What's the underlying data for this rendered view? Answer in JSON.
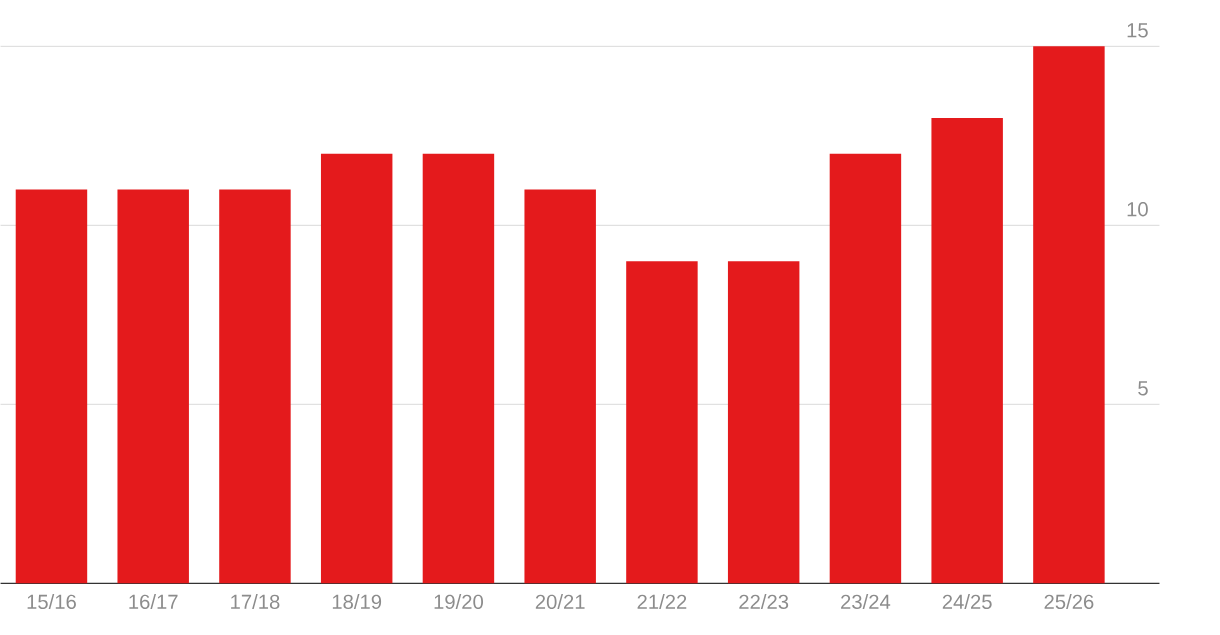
{
  "chart_data": {
    "type": "bar",
    "categories": [
      "15/16",
      "16/17",
      "17/18",
      "18/19",
      "19/20",
      "20/21",
      "21/22",
      "22/23",
      "23/24",
      "24/25",
      "25/26"
    ],
    "values": [
      11,
      11,
      11,
      12,
      12,
      11,
      9,
      9,
      12,
      13,
      15
    ],
    "color": "#e41a1c",
    "ylim": [
      0,
      15
    ],
    "yticks": [
      5,
      10,
      15
    ],
    "grid": "y"
  }
}
